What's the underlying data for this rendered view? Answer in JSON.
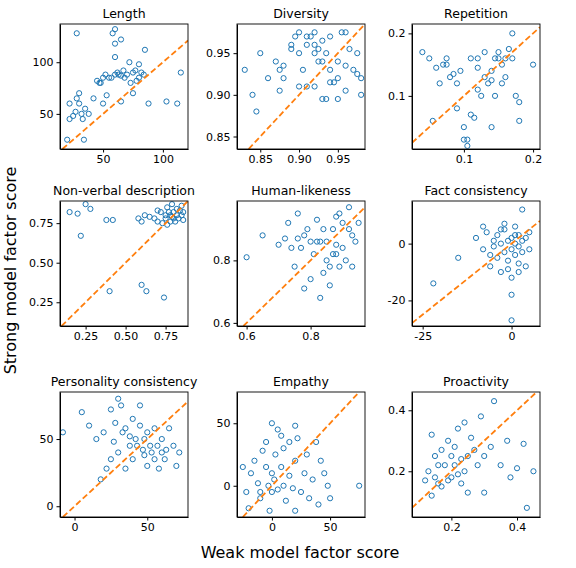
{
  "xlabel": "Weak model factor score",
  "ylabel": "Strong model factor score",
  "chart_data": [
    {
      "type": "scatter",
      "title": "Length",
      "marker": "open-circle",
      "color": "#1f77b4",
      "x": [
        20,
        22,
        25,
        27,
        28,
        30,
        30,
        32,
        33,
        34,
        35,
        38,
        42,
        45,
        48,
        50,
        52,
        53,
        55,
        57,
        58,
        60,
        60,
        62,
        63,
        65,
        65,
        67,
        68,
        70,
        72,
        73,
        75,
        75,
        77,
        78,
        80,
        80,
        82,
        84,
        60,
        60,
        65,
        85,
        88,
        103,
        112,
        115,
        47,
        50,
        28,
        22
      ],
      "y": [
        25,
        45,
        48,
        52,
        128,
        70,
        60,
        50,
        45,
        25,
        55,
        50,
        65,
        82,
        80,
        85,
        88,
        68,
        85,
        85,
        128,
        118,
        88,
        90,
        88,
        87,
        62,
        92,
        85,
        88,
        100,
        80,
        90,
        70,
        92,
        82,
        98,
        85,
        90,
        88,
        132,
        105,
        122,
        112,
        60,
        62,
        60,
        90,
        80,
        60,
        65,
        60
      ],
      "xlim": [
        14,
        121
      ],
      "ylim": [
        16,
        137
      ],
      "xticks": [
        50,
        100
      ],
      "yticks": [
        50,
        100
      ]
    },
    {
      "type": "scatter",
      "title": "Diversity",
      "marker": "open-circle",
      "color": "#1f77b4",
      "x": [
        0.83,
        0.84,
        0.845,
        0.86,
        0.87,
        0.875,
        0.88,
        0.89,
        0.89,
        0.895,
        0.9,
        0.9,
        0.905,
        0.91,
        0.91,
        0.915,
        0.92,
        0.92,
        0.925,
        0.93,
        0.93,
        0.935,
        0.94,
        0.94,
        0.945,
        0.95,
        0.95,
        0.955,
        0.96,
        0.96,
        0.965,
        0.97,
        0.975,
        0.975,
        0.98,
        0.98,
        0.92,
        0.91,
        0.9,
        0.88,
        0.93,
        0.935,
        0.95,
        0.94,
        0.925,
        0.96,
        0.92,
        0.875,
        0.85
      ],
      "y": [
        0.93,
        0.9,
        0.88,
        0.92,
        0.94,
        0.93,
        0.935,
        0.955,
        0.96,
        0.97,
        0.975,
        0.95,
        0.93,
        0.96,
        0.97,
        0.97,
        0.975,
        0.96,
        0.955,
        0.965,
        0.94,
        0.95,
        0.97,
        0.93,
        0.915,
        0.94,
        0.92,
        0.975,
        0.935,
        0.905,
        0.955,
        0.93,
        0.95,
        0.925,
        0.9,
        0.92,
        0.91,
        0.91,
        0.91,
        0.92,
        0.895,
        0.895,
        0.895,
        0.915,
        0.94,
        0.975,
        0.95,
        0.905,
        0.95
      ],
      "xlim": [
        0.82,
        0.985
      ],
      "ylim": [
        0.835,
        0.985
      ],
      "xticks": [
        0.85,
        {
          "value": 0.9,
          "label": "0.90"
        },
        0.95
      ],
      "yticks": [
        0.85,
        {
          "value": 0.9,
          "label": "0.90"
        },
        0.95
      ]
    },
    {
      "type": "scatter",
      "title": "Repetition",
      "marker": "open-circle",
      "color": "#1f77b4",
      "x": [
        0.04,
        0.05,
        0.055,
        0.06,
        0.065,
        0.07,
        0.075,
        0.08,
        0.085,
        0.09,
        0.09,
        0.095,
        0.1,
        0.1,
        0.105,
        0.11,
        0.11,
        0.115,
        0.12,
        0.12,
        0.125,
        0.13,
        0.13,
        0.135,
        0.14,
        0.14,
        0.145,
        0.15,
        0.15,
        0.155,
        0.155,
        0.16,
        0.165,
        0.17,
        0.17,
        0.175,
        0.18,
        0.18,
        0.2,
        0.075,
        0.12,
        0.14,
        0.105,
        0.16,
        0.145
      ],
      "y": [
        0.17,
        0.16,
        0.06,
        0.145,
        0.12,
        0.15,
        0.16,
        0.13,
        0.135,
        0.12,
        0.08,
        0.14,
        0.03,
        0.05,
        0.02,
        0.16,
        0.07,
        0.065,
        0.145,
        0.11,
        0.1,
        0.13,
        0.17,
        0.12,
        0.125,
        0.14,
        0.1,
        0.16,
        0.17,
        0.15,
        0.12,
        0.16,
        0.175,
        0.16,
        0.2,
        0.1,
        0.06,
        0.09,
        0.15,
        0.15,
        0.16,
        0.05,
        0.03,
        0.13,
        0.16
      ],
      "xlim": [
        0.025,
        0.21
      ],
      "ylim": [
        0.015,
        0.215
      ],
      "xticks": [
        0.1,
        0.2
      ],
      "yticks": [
        0.1,
        0.2
      ]
    },
    {
      "type": "scatter",
      "title": "Non-verbal description",
      "marker": "open-circle",
      "color": "#1f77b4",
      "x": [
        0.15,
        0.2,
        0.22,
        0.25,
        0.28,
        0.38,
        0.4,
        0.42,
        0.58,
        0.6,
        0.6,
        0.62,
        0.63,
        0.65,
        0.68,
        0.7,
        0.7,
        0.72,
        0.73,
        0.74,
        0.75,
        0.75,
        0.76,
        0.77,
        0.78,
        0.78,
        0.79,
        0.8,
        0.8,
        0.81,
        0.82,
        0.82,
        0.83,
        0.84,
        0.85,
        0.85,
        0.86,
        0.86,
        0.76,
        0.79
      ],
      "y": [
        0.82,
        0.81,
        0.67,
        0.87,
        0.84,
        0.77,
        0.32,
        0.77,
        0.78,
        0.76,
        0.36,
        0.8,
        0.32,
        0.79,
        0.78,
        0.76,
        0.83,
        0.82,
        0.75,
        0.28,
        0.8,
        0.78,
        0.85,
        0.82,
        0.76,
        0.8,
        0.87,
        0.82,
        0.78,
        0.76,
        0.84,
        0.8,
        0.78,
        0.83,
        0.86,
        0.8,
        0.77,
        0.82,
        0.74,
        0.79
      ],
      "xlim": [
        0.09,
        0.89
      ],
      "ylim": [
        0.1,
        0.89
      ],
      "xticks": [
        0.25,
        {
          "value": 0.5,
          "label": "0.50"
        },
        0.75
      ],
      "yticks": [
        0.25,
        {
          "value": 0.5,
          "label": "0.50"
        },
        0.75
      ]
    },
    {
      "type": "scatter",
      "title": "Human-likeness",
      "marker": "open-circle",
      "color": "#1f77b4",
      "x": [
        0.6,
        0.65,
        0.7,
        0.72,
        0.73,
        0.75,
        0.76,
        0.77,
        0.78,
        0.78,
        0.79,
        0.8,
        0.8,
        0.81,
        0.82,
        0.82,
        0.83,
        0.84,
        0.84,
        0.85,
        0.85,
        0.86,
        0.86,
        0.87,
        0.87,
        0.88,
        0.88,
        0.89,
        0.89,
        0.9,
        0.9,
        0.91,
        0.92,
        0.92,
        0.93,
        0.93,
        0.94,
        0.95,
        0.76,
        0.74,
        0.83,
        0.88
      ],
      "y": [
        0.81,
        0.88,
        0.85,
        0.87,
        0.92,
        0.78,
        0.87,
        0.84,
        0.88,
        0.71,
        0.9,
        0.86,
        0.74,
        0.82,
        0.86,
        0.93,
        0.86,
        0.9,
        0.76,
        0.8,
        0.86,
        0.78,
        0.72,
        0.82,
        0.9,
        0.94,
        0.85,
        0.78,
        0.95,
        0.84,
        0.92,
        0.8,
        0.97,
        0.9,
        0.88,
        0.78,
        0.86,
        0.92,
        0.95,
        0.84,
        0.68,
        0.82
      ],
      "xlim": [
        0.57,
        0.97
      ],
      "ylim": [
        0.59,
        0.99
      ],
      "xticks": [
        0.6,
        0.8
      ],
      "yticks": [
        0.6,
        0.8
      ]
    },
    {
      "type": "scatter",
      "title": "Fact consistency",
      "marker": "open-circle",
      "color": "#1f77b4",
      "x": [
        -22,
        -15,
        -10,
        -8,
        -7,
        -6,
        -5,
        -4,
        -4,
        -3,
        -3,
        -2,
        -2,
        -1,
        -1,
        0,
        0,
        0,
        0,
        1,
        1,
        1,
        2,
        2,
        2,
        3,
        3,
        3,
        4,
        4,
        5,
        5,
        -2,
        -6,
        -1,
        0,
        2,
        -3,
        1,
        -5,
        -8
      ],
      "y": [
        -14,
        -5,
        2,
        -2,
        4,
        -8,
        -1,
        3,
        -5,
        0,
        -10,
        5,
        -3,
        1,
        -6,
        2,
        -2,
        -12,
        -27,
        6,
        -4,
        0,
        3,
        -7,
        -1,
        -3,
        1,
        12,
        -8,
        2,
        -2,
        4,
        7,
        -4,
        -9,
        -18,
        -10,
        5,
        3,
        1,
        6
      ],
      "xlim": [
        -28,
        8
      ],
      "ylim": [
        -29,
        15
      ],
      "xticks": [
        -25,
        0
      ],
      "yticks": [
        -20,
        0
      ]
    },
    {
      "type": "scatter",
      "title": "Personality consistency",
      "marker": "open-circle",
      "color": "#1f77b4",
      "x": [
        -8,
        5,
        10,
        15,
        18,
        20,
        22,
        25,
        27,
        28,
        30,
        30,
        32,
        33,
        35,
        35,
        38,
        40,
        40,
        42,
        43,
        45,
        45,
        47,
        48,
        50,
        50,
        52,
        53,
        55,
        55,
        57,
        58,
        60,
        60,
        62,
        63,
        65,
        68,
        70,
        72,
        48,
        38,
        25
      ],
      "y": [
        55,
        70,
        60,
        50,
        20,
        55,
        28,
        72,
        48,
        62,
        80,
        40,
        75,
        55,
        58,
        28,
        52,
        35,
        65,
        50,
        45,
        60,
        75,
        42,
        38,
        30,
        55,
        45,
        40,
        35,
        58,
        45,
        28,
        50,
        40,
        35,
        42,
        58,
        45,
        30,
        40,
        50,
        45,
        35
      ],
      "xlim": [
        -10,
        78
      ],
      "ylim": [
        -8,
        85
      ],
      "xticks": [
        0,
        50
      ],
      "yticks": [
        0,
        50
      ]
    },
    {
      "type": "scatter",
      "title": "Empathy",
      "marker": "open-circle",
      "color": "#1f77b4",
      "x": [
        -25,
        -22,
        -20,
        -18,
        -15,
        -12,
        -10,
        -8,
        -5,
        -5,
        -3,
        -2,
        0,
        0,
        2,
        3,
        5,
        5,
        8,
        10,
        10,
        12,
        15,
        15,
        18,
        20,
        20,
        22,
        25,
        28,
        30,
        32,
        35,
        38,
        40,
        42,
        45,
        48,
        50,
        20,
        -10,
        75,
        0,
        8
      ],
      "y": [
        15,
        -5,
        -18,
        10,
        20,
        2,
        -10,
        28,
        35,
        15,
        0,
        -20,
        10,
        50,
        5,
        25,
        -3,
        45,
        15,
        30,
        0,
        -12,
        35,
        8,
        -2,
        20,
        48,
        38,
        -5,
        10,
        25,
        -10,
        5,
        35,
        -15,
        20,
        10,
        0,
        -10,
        -20,
        -5,
        0,
        -5,
        40
      ],
      "xlim": [
        -30,
        80
      ],
      "ylim": [
        -25,
        75
      ],
      "xticks": [
        0,
        50
      ],
      "yticks": [
        0,
        50
      ]
    },
    {
      "type": "scatter",
      "title": "Proactivity",
      "marker": "open-circle",
      "color": "#1f77b4",
      "x": [
        0.12,
        0.13,
        0.14,
        0.15,
        0.15,
        0.16,
        0.17,
        0.17,
        0.18,
        0.19,
        0.19,
        0.2,
        0.2,
        0.21,
        0.21,
        0.22,
        0.22,
        0.23,
        0.24,
        0.24,
        0.25,
        0.25,
        0.26,
        0.27,
        0.28,
        0.29,
        0.3,
        0.3,
        0.32,
        0.33,
        0.35,
        0.37,
        0.38,
        0.4,
        0.42,
        0.43,
        0.45,
        0.14,
        0.16,
        0.23
      ],
      "y": [
        0.17,
        0.2,
        0.32,
        0.18,
        0.25,
        0.22,
        0.27,
        0.15,
        0.22,
        0.3,
        0.17,
        0.25,
        0.18,
        0.22,
        0.28,
        0.34,
        0.19,
        0.24,
        0.36,
        0.2,
        0.25,
        0.13,
        0.31,
        0.27,
        0.22,
        0.38,
        0.25,
        0.13,
        0.28,
        0.43,
        0.22,
        0.3,
        0.18,
        0.21,
        0.29,
        0.08,
        0.2,
        0.12,
        0.16,
        0.16
      ],
      "xlim": [
        0.08,
        0.47
      ],
      "ylim": [
        0.05,
        0.46
      ],
      "xticks": [
        0.2,
        0.4
      ],
      "yticks": [
        0.2,
        0.4
      ]
    }
  ]
}
